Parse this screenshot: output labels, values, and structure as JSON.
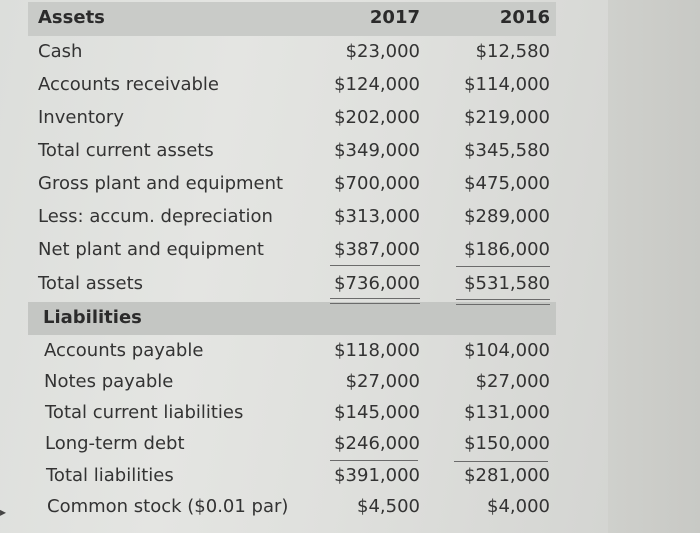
{
  "assets": {
    "heading": "Assets",
    "col_2017": "2017",
    "col_2016": "2016",
    "rows": [
      {
        "label": "Cash",
        "v2017": "$23,000",
        "v2016": "$12,580"
      },
      {
        "label": "Accounts receivable",
        "v2017": "$124,000",
        "v2016": "$114,000"
      },
      {
        "label": "Inventory",
        "v2017": "$202,000",
        "v2016": "$219,000"
      },
      {
        "label": "Total current assets",
        "v2017": "$349,000",
        "v2016": "$345,580"
      },
      {
        "label": "Gross plant and equipment",
        "v2017": "$700,000",
        "v2016": "$475,000"
      },
      {
        "label": "Less: accum. depreciation",
        "v2017": "$313,000",
        "v2016": "$289,000"
      },
      {
        "label": "Net plant and equipment",
        "v2017": "$387,000",
        "v2016": "$186,000"
      },
      {
        "label": "Total assets",
        "v2017": "$736,000",
        "v2016": "$531,580"
      }
    ]
  },
  "liabilities": {
    "heading": "Liabilities",
    "rows": [
      {
        "label": "Accounts payable",
        "v2017": "$118,000",
        "v2016": "$104,000"
      },
      {
        "label": "Notes payable",
        "v2017": "$27,000",
        "v2016": "$27,000"
      },
      {
        "label": "Total current liabilities",
        "v2017": "$145,000",
        "v2016": "$131,000"
      },
      {
        "label": "Long-term debt",
        "v2017": "$246,000",
        "v2016": "$150,000"
      },
      {
        "label": "Total liabilities",
        "v2017": "$391,000",
        "v2016": "$281,000"
      },
      {
        "label": "Common stock ($0.01 par)",
        "v2017": "$4,500",
        "v2016": "$4,000"
      }
    ]
  }
}
